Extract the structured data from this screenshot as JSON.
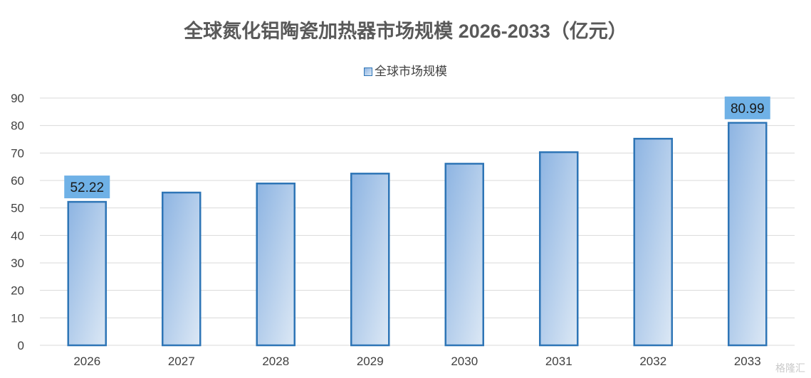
{
  "watermark": "格隆汇",
  "chart_data": {
    "type": "bar",
    "title": "全球氮化铝陶瓷加热器市场规模 2026-2033（亿元）",
    "legend_position": "top",
    "categories": [
      "2026",
      "2027",
      "2028",
      "2029",
      "2030",
      "2031",
      "2032",
      "2033"
    ],
    "series": [
      {
        "name": "全球市场规模",
        "values": [
          52.22,
          55.6,
          58.9,
          62.5,
          66.1,
          70.3,
          75.2,
          80.99
        ]
      }
    ],
    "data_labels": [
      {
        "index": 0,
        "text": "52.22"
      },
      {
        "index": 7,
        "text": "80.99"
      }
    ],
    "ylim": [
      0,
      90
    ],
    "yticks": [
      0,
      10,
      20,
      30,
      40,
      50,
      60,
      70,
      80,
      90
    ],
    "grid": true,
    "colors": {
      "bar_border": "#2e75b6",
      "bar_fill_start": "#8db4e2",
      "bar_fill_end": "#dce8f5",
      "label_background": "#6fb1e6",
      "grid": "#d9d9d9",
      "title": "#595959"
    }
  }
}
